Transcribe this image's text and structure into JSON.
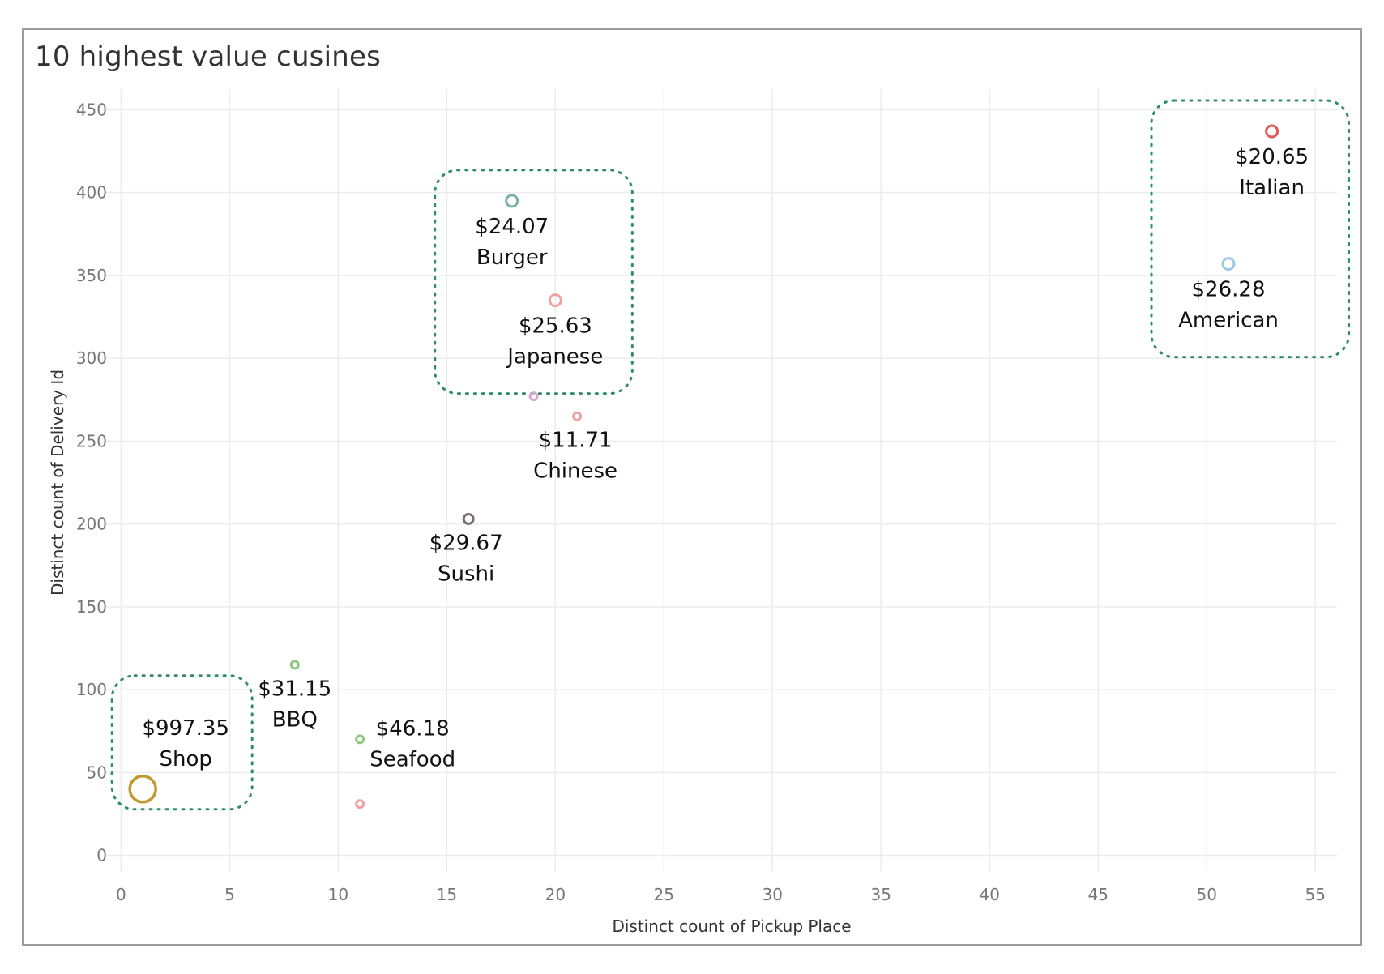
{
  "title": "10 highest value cusines",
  "chart_data": {
    "type": "scatter",
    "title": "10 highest value cusines",
    "xlabel": "Distinct count of Pickup Place",
    "ylabel": "Distinct count of Delivery Id",
    "xlim": [
      -0.5,
      56
    ],
    "ylim": [
      -10,
      460
    ],
    "xticks": [
      0,
      5,
      10,
      15,
      20,
      25,
      30,
      35,
      40,
      45,
      50,
      55
    ],
    "yticks": [
      0,
      50,
      100,
      150,
      200,
      250,
      300,
      350,
      400,
      450
    ],
    "grid": true,
    "points": [
      {
        "name": "Italian",
        "value": "$20.65",
        "x": 53,
        "y": 437,
        "color": "#e05a5a"
      },
      {
        "name": "American",
        "value": "$26.28",
        "x": 51,
        "y": 357,
        "color": "#9cc9e6"
      },
      {
        "name": "Burger",
        "value": "$24.07",
        "x": 18,
        "y": 395,
        "color": "#78b0a8"
      },
      {
        "name": "Japanese",
        "value": "$25.63",
        "x": 20,
        "y": 335,
        "color": "#f2a0a0"
      },
      {
        "name": "",
        "value": "",
        "x": 19,
        "y": 277,
        "color": "#d8a8d0"
      },
      {
        "name": "Chinese",
        "value": "$11.71",
        "x": 21,
        "y": 265,
        "color": "#f2a0a0"
      },
      {
        "name": "Sushi",
        "value": "$29.67",
        "x": 16,
        "y": 203,
        "color": "#7a6e6e"
      },
      {
        "name": "BBQ",
        "value": "$31.15",
        "x": 8,
        "y": 115,
        "color": "#8cc97a"
      },
      {
        "name": "Seafood",
        "value": "$46.18",
        "x": 11,
        "y": 70,
        "color": "#8cc97a"
      },
      {
        "name": "",
        "value": "",
        "x": 11,
        "y": 31,
        "color": "#f2a0a0"
      },
      {
        "name": "Shop",
        "value": "$997.35",
        "x": 1,
        "y": 40,
        "color": "#c19a2e"
      }
    ],
    "highlight_groups": [
      {
        "members": [
          "Italian",
          "American"
        ],
        "color": "#2e8b6f"
      },
      {
        "members": [
          "Burger",
          "Japanese"
        ],
        "color": "#2e8b6f"
      },
      {
        "members": [
          "Shop"
        ],
        "color": "#2e8b6f"
      }
    ]
  }
}
